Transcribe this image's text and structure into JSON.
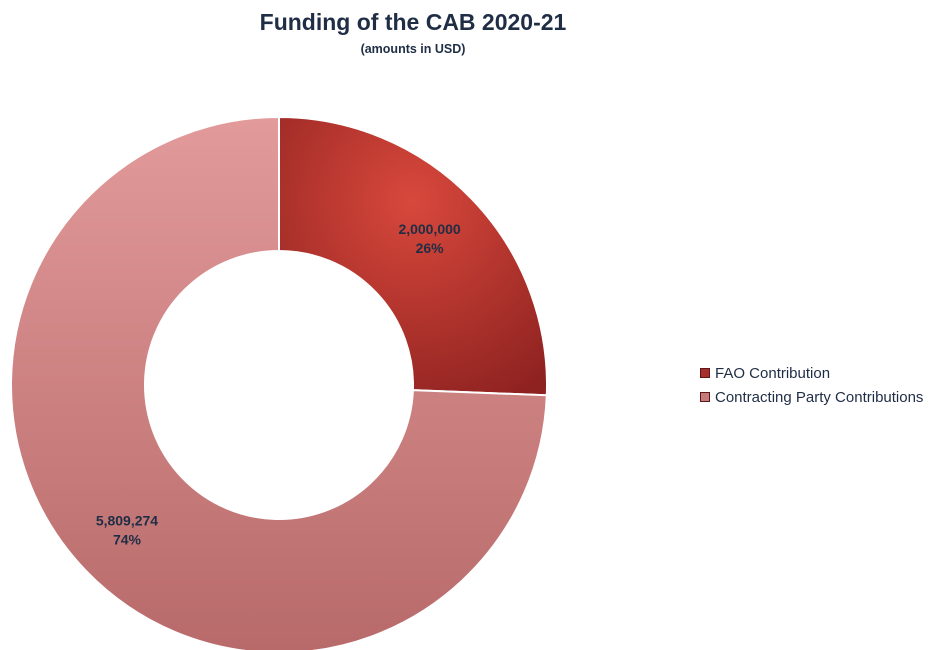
{
  "chart_data": {
    "type": "pie",
    "title": "Funding of the CAB 2020-21",
    "subtitle": "(amounts in USD)",
    "donut": true,
    "legend_position": "right",
    "slices": [
      {
        "label": "FAO Contribution",
        "value": 2000000,
        "value_label": "2,000,000",
        "percent_label": "26%",
        "color": "#c0392f"
      },
      {
        "label": "Contracting Party Contributions",
        "value": 5809274,
        "value_label": "5,809,274",
        "percent_label": "74%",
        "color": "#d98a8a"
      }
    ]
  }
}
